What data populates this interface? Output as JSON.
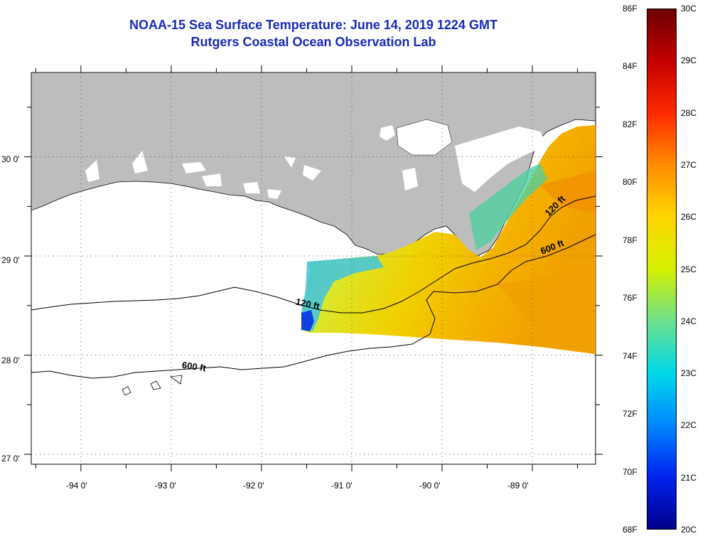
{
  "header": {
    "title": "NOAA-15 Sea Surface Temperature:  June 14, 2019 1224 GMT",
    "subtitle": "Rutgers Coastal Ocean Observation Lab"
  },
  "map": {
    "lon_range": [
      -94.55,
      -88.3
    ],
    "lat_range": [
      26.9,
      30.85
    ],
    "lon_ticks": [
      "-94 0'",
      "-93 0'",
      "-92 0'",
      "-91 0'",
      "-90 0'",
      "-89 0'"
    ],
    "lat_ticks": [
      "30 0'",
      "29 0'",
      "28 0'",
      "27 0'"
    ],
    "contour_labels": [
      {
        "text": "120 ft",
        "place": "west"
      },
      {
        "text": "600 ft",
        "place": "west"
      },
      {
        "text": "120 ft",
        "place": "east"
      },
      {
        "text": "600 ft",
        "place": "east"
      }
    ],
    "colors": {
      "land": "#bdbdbd",
      "no_data": "#ffffff",
      "title": "#1a2ab8"
    }
  },
  "colorbar": {
    "fahrenheit": [
      "86F",
      "84F",
      "82F",
      "80F",
      "78F",
      "76F",
      "74F",
      "72F",
      "70F",
      "68F"
    ],
    "celsius": [
      "30C",
      "29C",
      "28C",
      "27C",
      "26C",
      "25C",
      "24C",
      "23C",
      "22C",
      "21C",
      "20C"
    ],
    "stops": [
      "#6b0000",
      "#c40000",
      "#ff2a00",
      "#ff8c00",
      "#ffd700",
      "#d4f000",
      "#6ee08c",
      "#00d8e8",
      "#0088ff",
      "#0022ee",
      "#00008a"
    ]
  }
}
